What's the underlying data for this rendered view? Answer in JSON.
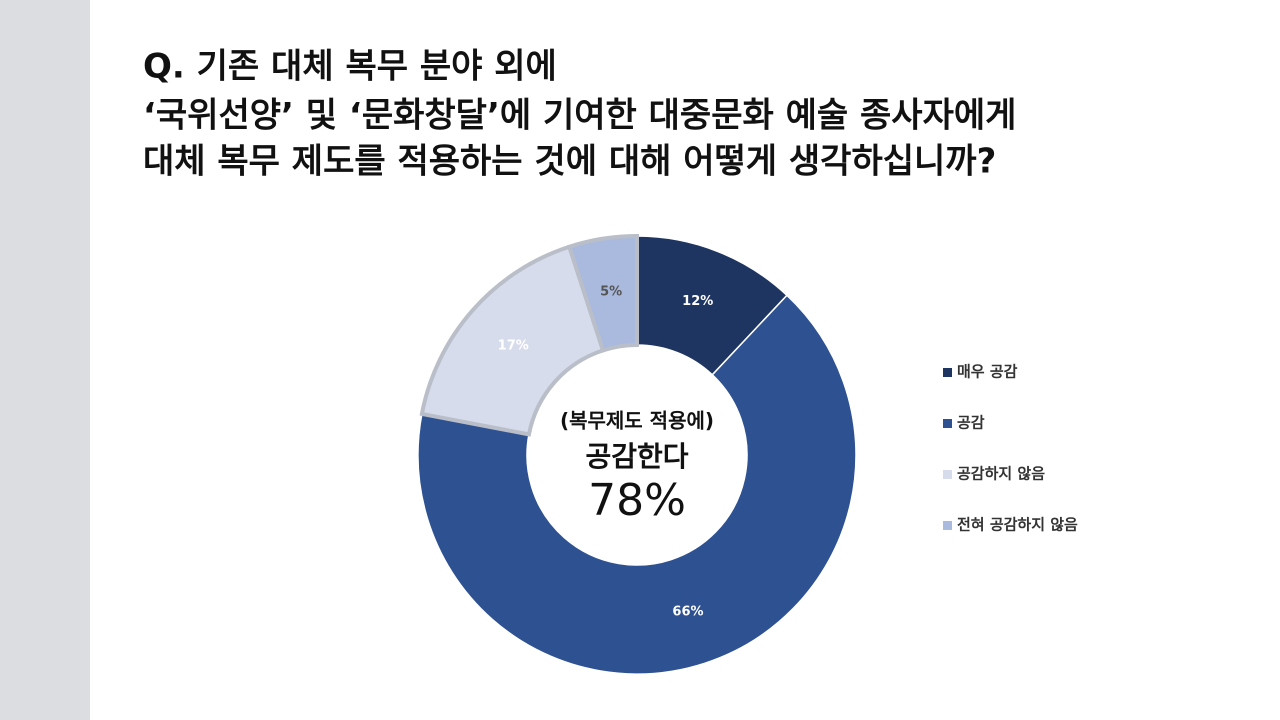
{
  "chart_data": {
    "type": "donut",
    "title": [
      "Q. 기존 대체 복무 분야 외에",
      "‘국위선양’ 및 ‘문화창달’에 기여한 대중문화 예술 종사자에게",
      "대체 복무 제도를 적용하는 것에 대해 어떻게 생각하십니까?"
    ],
    "categories": [
      "매우 공감",
      "공감",
      "공감하지 않음",
      "전혀 공감하지 않음"
    ],
    "values": [
      12,
      66,
      17,
      5
    ],
    "value_labels": [
      "12%",
      "66%",
      "17%",
      "5%"
    ],
    "colors": [
      "#1f3561",
      "#2e5191",
      "#d6dcec",
      "#a9bade"
    ],
    "center_text": [
      "(복무제도 적용에)",
      "공감한다",
      "78%"
    ],
    "legend": "right"
  }
}
